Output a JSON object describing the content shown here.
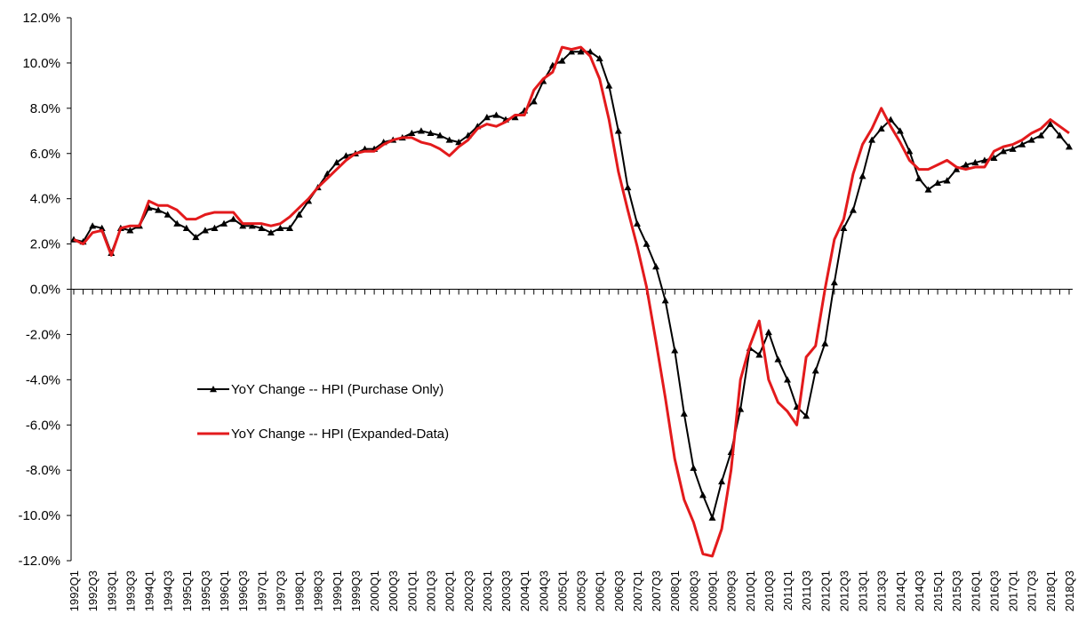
{
  "chart_data": {
    "type": "line",
    "categories": [
      "1992Q1",
      null,
      "1992Q3",
      null,
      "1993Q1",
      null,
      "1993Q3",
      null,
      "1994Q1",
      null,
      "1994Q3",
      null,
      "1995Q1",
      null,
      "1995Q3",
      null,
      "1996Q1",
      null,
      "1996Q3",
      null,
      "1997Q1",
      null,
      "1997Q3",
      null,
      "1998Q1",
      null,
      "1998Q3",
      null,
      "1999Q1",
      null,
      "1999Q3",
      null,
      "2000Q1",
      null,
      "2000Q3",
      null,
      "2001Q1",
      null,
      "2001Q3",
      null,
      "2002Q1",
      null,
      "2002Q3",
      null,
      "2003Q1",
      null,
      "2003Q3",
      null,
      "2004Q1",
      null,
      "2004Q3",
      null,
      "2005Q1",
      null,
      "2005Q3",
      null,
      "2006Q1",
      null,
      "2006Q3",
      null,
      "2007Q1",
      null,
      "2007Q3",
      null,
      "2008Q1",
      null,
      "2008Q3",
      null,
      "2009Q1",
      null,
      "2009Q3",
      null,
      "2010Q1",
      null,
      "2010Q3",
      null,
      "2011Q1",
      null,
      "2011Q3",
      null,
      "2012Q1",
      null,
      "2012Q3",
      null,
      "2013Q1",
      null,
      "2013Q3",
      null,
      "2014Q1",
      null,
      "2014Q3",
      null,
      "2015Q1",
      null,
      "2015Q3",
      null,
      "2016Q1",
      null,
      "2016Q3",
      null,
      "2017Q1",
      null,
      "2017Q3",
      null,
      "2018Q1",
      null,
      "2018Q3"
    ],
    "series": [
      {
        "name": "YoY Change -- HPI (Purchase Only)",
        "color": "#000000",
        "marker": "triangle",
        "values": [
          2.2,
          2.1,
          2.8,
          2.7,
          1.6,
          2.7,
          2.6,
          2.8,
          3.6,
          3.5,
          3.3,
          2.9,
          2.7,
          2.3,
          2.6,
          2.7,
          2.9,
          3.1,
          2.8,
          2.8,
          2.7,
          2.5,
          2.7,
          2.7,
          3.3,
          3.9,
          4.5,
          5.1,
          5.6,
          5.9,
          6.0,
          6.2,
          6.2,
          6.5,
          6.6,
          6.7,
          6.9,
          7.0,
          6.9,
          6.8,
          6.6,
          6.5,
          6.8,
          7.2,
          7.6,
          7.7,
          7.5,
          7.6,
          7.9,
          8.3,
          9.2,
          9.9,
          10.1,
          10.5,
          10.5,
          10.5,
          10.2,
          9.0,
          7.0,
          4.5,
          2.9,
          2.0,
          1.0,
          -0.5,
          -2.7,
          -5.5,
          -7.9,
          -9.1,
          -10.1,
          -8.5,
          -7.2,
          -5.3,
          -2.6,
          -2.9,
          -1.9,
          -3.1,
          -4.0,
          -5.2,
          -5.6,
          -3.6,
          -2.4,
          0.3,
          2.7,
          3.5,
          5.0,
          6.6,
          7.1,
          7.5,
          7.0,
          6.1,
          4.9,
          4.4,
          4.7,
          4.8,
          5.3,
          5.5,
          5.6,
          5.7,
          5.8,
          6.1,
          6.2,
          6.4,
          6.6,
          6.8,
          7.3,
          6.8,
          6.3
        ]
      },
      {
        "name": "YoY Change -- HPI (Expanded-Data)",
        "color": "#e31a1c",
        "marker": null,
        "values": [
          2.2,
          2.0,
          2.5,
          2.6,
          1.5,
          2.7,
          2.8,
          2.8,
          3.9,
          3.7,
          3.7,
          3.5,
          3.1,
          3.1,
          3.3,
          3.4,
          3.4,
          3.4,
          2.9,
          2.9,
          2.9,
          2.8,
          2.9,
          3.2,
          3.6,
          4.0,
          4.5,
          4.9,
          5.3,
          5.7,
          6.0,
          6.1,
          6.1,
          6.4,
          6.6,
          6.7,
          6.7,
          6.5,
          6.4,
          6.2,
          5.9,
          6.3,
          6.6,
          7.1,
          7.3,
          7.2,
          7.4,
          7.7,
          7.7,
          8.8,
          9.3,
          9.6,
          10.7,
          10.6,
          10.7,
          10.3,
          9.3,
          7.5,
          5.2,
          3.5,
          1.9,
          0.1,
          -2.3,
          -4.8,
          -7.5,
          -9.3,
          -10.3,
          -11.7,
          -11.8,
          -10.6,
          -8.0,
          -4.0,
          -2.5,
          -1.4,
          -4.0,
          -5.0,
          -5.4,
          -6.0,
          -3.0,
          -2.5,
          0.0,
          2.2,
          3.1,
          5.1,
          6.4,
          7.1,
          8.0,
          7.2,
          6.5,
          5.7,
          5.3,
          5.3,
          5.5,
          5.7,
          5.4,
          5.3,
          5.4,
          5.4,
          6.1,
          6.3,
          6.4,
          6.6,
          6.9,
          7.1,
          7.5,
          7.2,
          6.9
        ]
      }
    ],
    "ylim": [
      -12,
      12
    ],
    "yticks": [
      {
        "value": 12,
        "label": "12.0%"
      },
      {
        "value": 10,
        "label": "10.0%"
      },
      {
        "value": 8,
        "label": "8.0%"
      },
      {
        "value": 6,
        "label": "6.0%"
      },
      {
        "value": 4,
        "label": "4.0%"
      },
      {
        "value": 2,
        "label": "2.0%"
      },
      {
        "value": 0,
        "label": "0.0%"
      },
      {
        "value": -2,
        "label": "-2.0%"
      },
      {
        "value": -4,
        "label": "-4.0%"
      },
      {
        "value": -6,
        "label": "-6.0%"
      },
      {
        "value": -8,
        "label": "-8.0%"
      },
      {
        "value": -10,
        "label": "-10.0%"
      },
      {
        "value": -12,
        "label": "-12.0%"
      }
    ],
    "grid": false,
    "legend": "left"
  }
}
